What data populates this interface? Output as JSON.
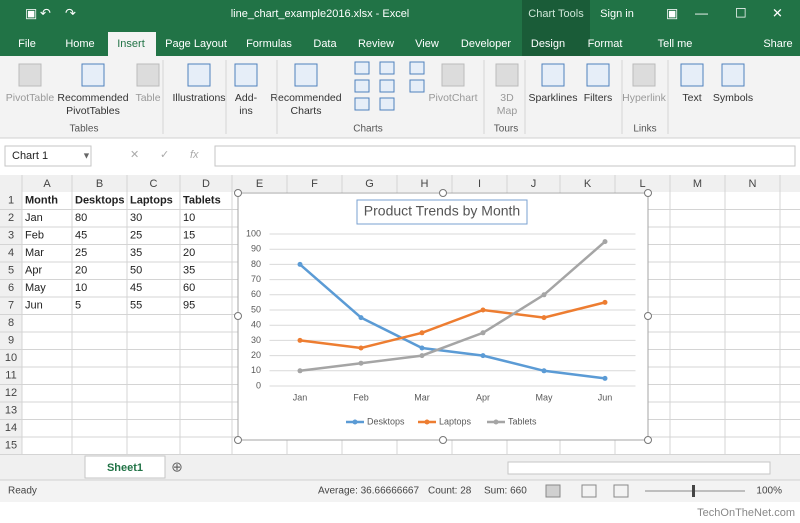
{
  "title_bar": {
    "file_name": "line_chart_example2016.xlsx - Excel",
    "context": "Chart Tools",
    "sign_in": "Sign in"
  },
  "tabs": [
    "File",
    "Home",
    "Insert",
    "Page Layout",
    "Formulas",
    "Data",
    "Review",
    "View",
    "Developer",
    "Design",
    "Format",
    "Tell me",
    "Share"
  ],
  "ribbon": {
    "buttons": [
      [
        "PivotTable"
      ],
      [
        "Recommended",
        "PivotTables"
      ],
      [
        "Table"
      ],
      [
        "Illustrations"
      ],
      [
        "Add-",
        "ins"
      ],
      [
        "Recommended",
        "Charts"
      ],
      [
        "PivotChart"
      ],
      [
        "3D",
        "Map"
      ],
      [
        "Sparklines"
      ],
      [
        "Filters"
      ],
      [
        "Hyperlink"
      ],
      [
        "Text"
      ],
      [
        "Symbols"
      ]
    ],
    "groups": [
      "Tables",
      "Charts",
      "Tours",
      "Links"
    ]
  },
  "formula_bar": {
    "name_box": "Chart 1",
    "fx": "fx"
  },
  "columns": [
    "A",
    "B",
    "C",
    "D",
    "E",
    "F",
    "G",
    "H",
    "I",
    "J",
    "K",
    "L",
    "M",
    "N"
  ],
  "rows": [
    1,
    2,
    3,
    4,
    5,
    6,
    7,
    8,
    9,
    10,
    11,
    12,
    13,
    14,
    15
  ],
  "sheet": {
    "month_header": "Month"
  },
  "chart_data": {
    "type": "line",
    "title": "Product Trends by Month",
    "categories": [
      "Jan",
      "Feb",
      "Mar",
      "Apr",
      "May",
      "Jun"
    ],
    "series": [
      {
        "name": "Desktops",
        "color": "#5b9bd5",
        "values": [
          80,
          45,
          25,
          20,
          10,
          5
        ]
      },
      {
        "name": "Laptops",
        "color": "#ed7d31",
        "values": [
          30,
          25,
          35,
          50,
          45,
          55
        ]
      },
      {
        "name": "Tablets",
        "color": "#a5a5a5",
        "values": [
          10,
          15,
          20,
          35,
          60,
          95
        ]
      }
    ],
    "ylim": [
      0,
      100
    ],
    "yticks": [
      0,
      10,
      20,
      30,
      40,
      50,
      60,
      70,
      80,
      90,
      100
    ],
    "grid": true,
    "legend": "bottom"
  },
  "sheet_tab": "Sheet1",
  "status_bar": {
    "ready": "Ready",
    "average": "Average: 36.66666667",
    "count": "Count: 28",
    "sum": "Sum: 660",
    "zoom": "100%"
  },
  "watermark": "TechOnTheNet.com"
}
